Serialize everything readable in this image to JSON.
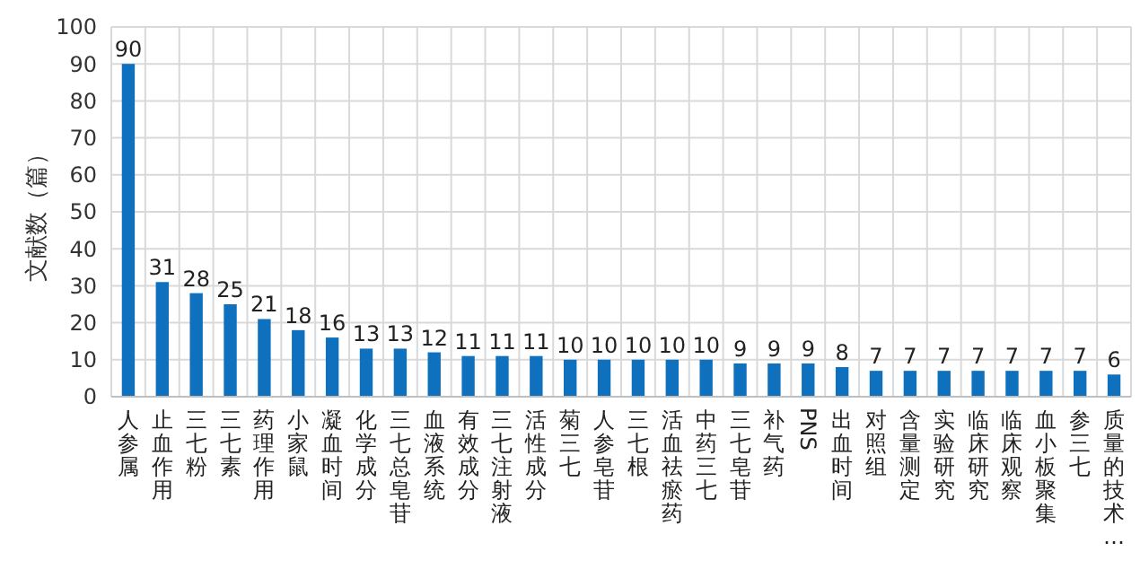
{
  "chart_data": {
    "type": "bar",
    "ylabel": "文献数（篇）",
    "categories": [
      "人参属",
      "止血作用",
      "三七粉",
      "三七素",
      "药理作用",
      "小家鼠",
      "凝血时间",
      "化学成分",
      "三七总皂苷",
      "血液系统",
      "有效成分",
      "三七注射液",
      "活性成分",
      "菊三七",
      "人参皂苷",
      "三七根",
      "活血祛瘀药",
      "中药三七",
      "三七皂苷",
      "补气药",
      "PNS",
      "出血时间",
      "对照组",
      "含量测定",
      "实验研究",
      "临床研究",
      "临床观察",
      "血小板聚集",
      "参三七",
      "质量的技术…"
    ],
    "values": [
      90,
      31,
      28,
      25,
      21,
      18,
      16,
      13,
      13,
      12,
      11,
      11,
      11,
      10,
      10,
      10,
      10,
      10,
      9,
      9,
      9,
      8,
      7,
      7,
      7,
      7,
      7,
      7,
      7,
      6
    ],
    "color": "#0f70bd",
    "ylim": [
      0,
      100
    ],
    "yticks": [
      0,
      10,
      20,
      30,
      40,
      50,
      60,
      70,
      80,
      90,
      100
    ],
    "grid": true,
    "data_labels": true
  }
}
